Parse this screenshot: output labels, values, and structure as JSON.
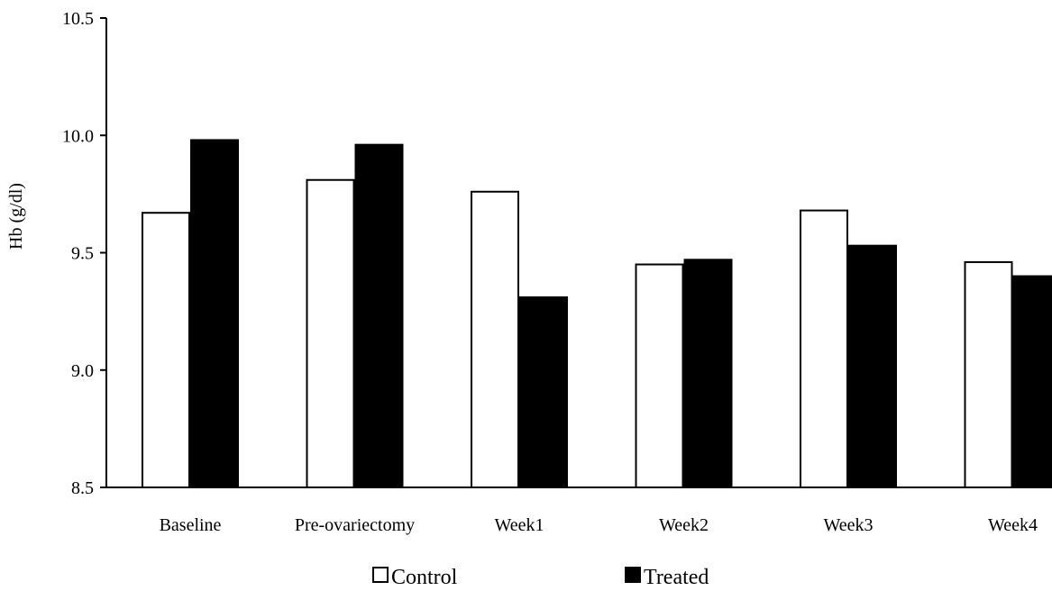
{
  "chart_data": {
    "type": "bar",
    "categories": [
      "Baseline",
      "Pre-ovariectomy",
      "Week1",
      "Week2",
      "Week3",
      "Week4"
    ],
    "series": [
      {
        "name": "Control",
        "values": [
          9.67,
          9.81,
          9.76,
          9.45,
          9.68,
          9.46
        ],
        "color": "#ffffff"
      },
      {
        "name": "Treated",
        "values": [
          9.98,
          9.96,
          9.31,
          9.47,
          9.53,
          9.4
        ],
        "color": "#000000"
      }
    ],
    "ylabel": "Hb (g/dl)",
    "xlabel": "",
    "ylim": [
      8.5,
      10.5
    ],
    "yticks": [
      8.5,
      9.0,
      9.5,
      10.0,
      10.5
    ],
    "ytick_labels": [
      "8.5",
      "9.0",
      "9.5",
      "10.0",
      "10.5"
    ],
    "grid": false,
    "legend_position": "bottom"
  }
}
